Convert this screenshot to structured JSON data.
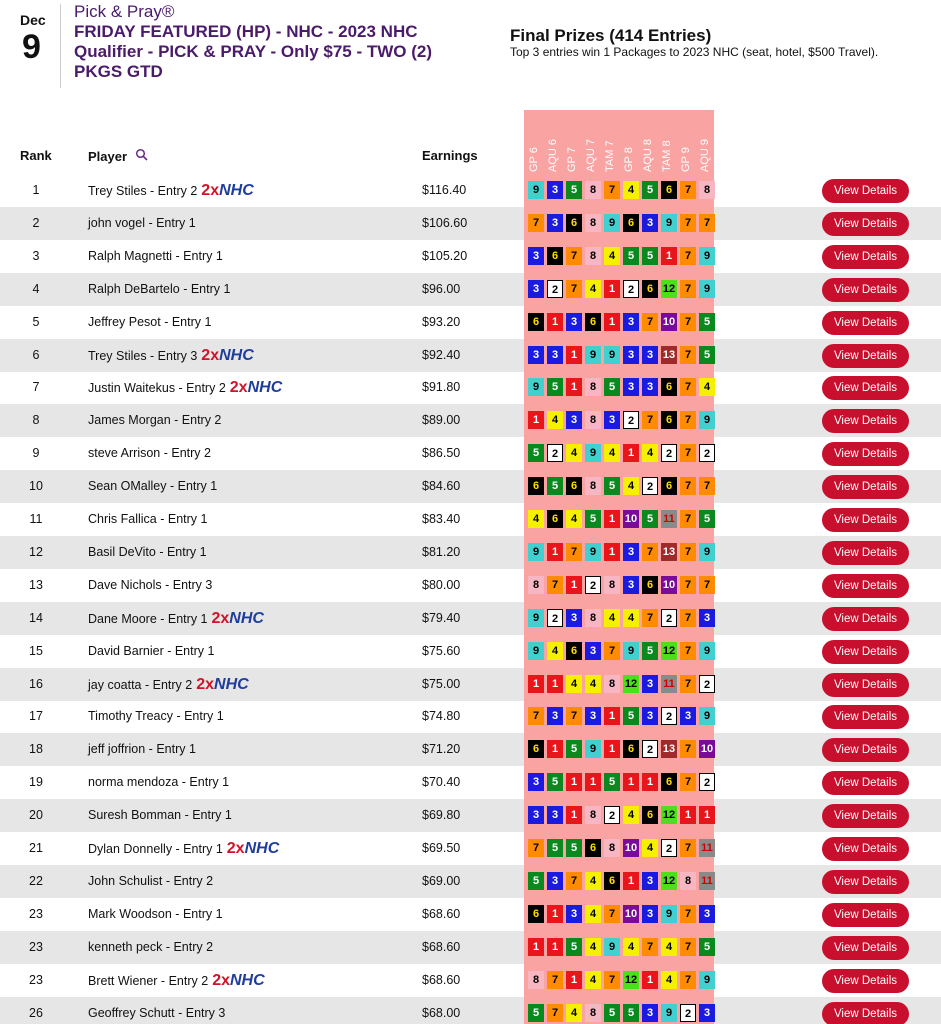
{
  "header": {
    "month": "Dec",
    "day": "9",
    "brand": "Pick & Pray®",
    "title": "FRIDAY FEATURED (HP) - NHC - 2023 NHC Qualifier - PICK & PRAY - Only $75 - TWO (2) PKGS GTD",
    "prizes_title": "Final Prizes (414 Entries)",
    "prizes_text": "Top 3 entries win 1 Packages to 2023 NHC (seat, hotel, $500 Travel)."
  },
  "table": {
    "columns": {
      "rank": "Rank",
      "player": "Player",
      "earnings": "Earnings"
    },
    "races": [
      "GP 6",
      "AQU 6",
      "GP 7",
      "AQU 7",
      "TAM 7",
      "GP 8",
      "AQU 8",
      "TAM 8",
      "GP 9",
      "AQU 9"
    ],
    "button_label": "View Details",
    "rows": [
      {
        "rank": 1,
        "player": "Trey Stiles - Entry 2",
        "badge": [
          "2x",
          "NHC"
        ],
        "earnings": "$116.40",
        "picks": [
          9,
          3,
          5,
          8,
          7,
          4,
          5,
          6,
          7,
          8
        ]
      },
      {
        "rank": 2,
        "player": "john vogel - Entry 1",
        "earnings": "$106.60",
        "picks": [
          7,
          3,
          6,
          8,
          9,
          6,
          3,
          9,
          7,
          7
        ]
      },
      {
        "rank": 3,
        "player": "Ralph Magnetti - Entry 1",
        "earnings": "$105.20",
        "picks": [
          3,
          6,
          7,
          8,
          4,
          5,
          5,
          1,
          7,
          9
        ]
      },
      {
        "rank": 4,
        "player": "Ralph DeBartelo - Entry 1",
        "earnings": "$96.00",
        "picks": [
          3,
          2,
          7,
          4,
          1,
          2,
          6,
          12,
          7,
          9
        ]
      },
      {
        "rank": 5,
        "player": "Jeffrey Pesot - Entry 1",
        "earnings": "$93.20",
        "picks": [
          6,
          1,
          3,
          6,
          1,
          3,
          7,
          10,
          7,
          5
        ]
      },
      {
        "rank": 6,
        "player": "Trey Stiles - Entry 3",
        "badge": [
          "2x",
          "NHC"
        ],
        "earnings": "$92.40",
        "picks": [
          3,
          3,
          1,
          9,
          9,
          3,
          3,
          13,
          7,
          5
        ]
      },
      {
        "rank": 7,
        "player": "Justin Waitekus - Entry 2",
        "badge": [
          "2x",
          "NHC"
        ],
        "earnings": "$91.80",
        "picks": [
          9,
          5,
          1,
          8,
          5,
          3,
          3,
          6,
          7,
          4
        ]
      },
      {
        "rank": 8,
        "player": "James Morgan - Entry 2",
        "earnings": "$89.00",
        "picks": [
          1,
          4,
          3,
          8,
          3,
          2,
          7,
          6,
          7,
          9
        ]
      },
      {
        "rank": 9,
        "player": "steve Arrison - Entry 2",
        "earnings": "$86.50",
        "picks": [
          5,
          2,
          4,
          9,
          4,
          1,
          4,
          2,
          7,
          2
        ]
      },
      {
        "rank": 10,
        "player": "Sean OMalley - Entry 1",
        "earnings": "$84.60",
        "picks": [
          6,
          5,
          6,
          8,
          5,
          4,
          2,
          6,
          7,
          7
        ]
      },
      {
        "rank": 11,
        "player": "Chris Fallica - Entry 1",
        "earnings": "$83.40",
        "picks": [
          4,
          6,
          4,
          5,
          1,
          10,
          5,
          11,
          7,
          5
        ]
      },
      {
        "rank": 12,
        "player": "Basil DeVito - Entry 1",
        "earnings": "$81.20",
        "picks": [
          9,
          1,
          7,
          9,
          1,
          3,
          7,
          13,
          7,
          9
        ]
      },
      {
        "rank": 13,
        "player": "Dave Nichols - Entry 3",
        "earnings": "$80.00",
        "picks": [
          8,
          7,
          1,
          2,
          8,
          3,
          6,
          10,
          7,
          7
        ]
      },
      {
        "rank": 14,
        "player": "Dane Moore - Entry 1",
        "badge": [
          "2x",
          "NHC"
        ],
        "earnings": "$79.40",
        "picks": [
          9,
          2,
          3,
          8,
          4,
          4,
          7,
          2,
          7,
          3
        ]
      },
      {
        "rank": 15,
        "player": "David Barnier - Entry 1",
        "earnings": "$75.60",
        "picks": [
          9,
          4,
          6,
          3,
          7,
          9,
          5,
          12,
          7,
          9
        ]
      },
      {
        "rank": 16,
        "player": "jay coatta - Entry 2",
        "badge": [
          "2x",
          "NHC"
        ],
        "earnings": "$75.00",
        "picks": [
          1,
          1,
          4,
          4,
          8,
          12,
          3,
          11,
          7,
          2
        ]
      },
      {
        "rank": 17,
        "player": "Timothy Treacy - Entry 1",
        "earnings": "$74.80",
        "picks": [
          7,
          3,
          7,
          3,
          1,
          5,
          3,
          2,
          3,
          9
        ]
      },
      {
        "rank": 18,
        "player": "jeff joffrion - Entry 1",
        "earnings": "$71.20",
        "picks": [
          6,
          1,
          5,
          9,
          1,
          6,
          2,
          13,
          7,
          10
        ]
      },
      {
        "rank": 19,
        "player": "norma mendoza - Entry 1",
        "earnings": "$70.40",
        "picks": [
          3,
          5,
          1,
          1,
          5,
          1,
          1,
          6,
          7,
          2
        ]
      },
      {
        "rank": 20,
        "player": "Suresh Bomman - Entry 1",
        "earnings": "$69.80",
        "picks": [
          3,
          3,
          1,
          8,
          2,
          4,
          6,
          12,
          1,
          1
        ]
      },
      {
        "rank": 21,
        "player": "Dylan Donnelly - Entry 1",
        "badge": [
          "2x",
          "NHC"
        ],
        "earnings": "$69.50",
        "picks": [
          7,
          5,
          5,
          6,
          8,
          10,
          4,
          2,
          7,
          11
        ]
      },
      {
        "rank": 22,
        "player": "John Schulist - Entry 2",
        "earnings": "$69.00",
        "picks": [
          5,
          3,
          7,
          4,
          6,
          1,
          3,
          12,
          8,
          11
        ]
      },
      {
        "rank": 23,
        "player": "Mark Woodson - Entry 1",
        "earnings": "$68.60",
        "picks": [
          6,
          1,
          3,
          4,
          7,
          10,
          3,
          9,
          7,
          3
        ]
      },
      {
        "rank": 23,
        "player": "kenneth peck - Entry 2",
        "earnings": "$68.60",
        "picks": [
          1,
          1,
          5,
          4,
          9,
          4,
          7,
          4,
          7,
          5
        ]
      },
      {
        "rank": 23,
        "player": "Brett Wiener - Entry 2",
        "badge": [
          "2x",
          "NHC"
        ],
        "earnings": "$68.60",
        "picks": [
          8,
          7,
          1,
          4,
          7,
          12,
          1,
          4,
          7,
          9
        ]
      },
      {
        "rank": 26,
        "player": "Geoffrey Schutt - Entry 3",
        "earnings": "$68.00",
        "picks": [
          5,
          7,
          4,
          8,
          5,
          5,
          3,
          9,
          2,
          3
        ]
      }
    ]
  }
}
